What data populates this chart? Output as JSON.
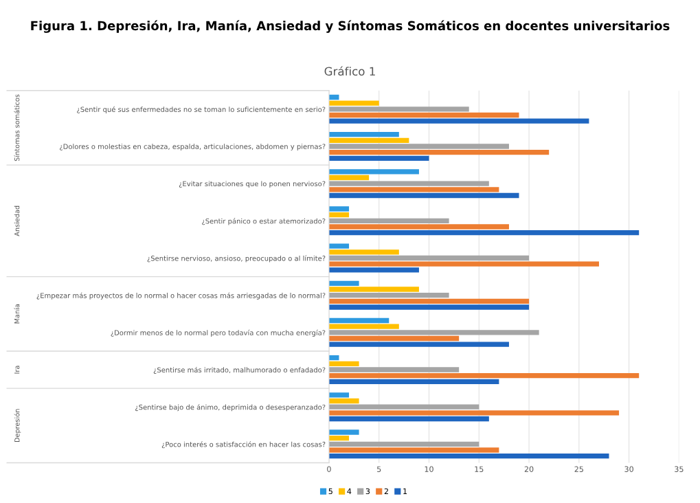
{
  "chart_data": {
    "type": "bar",
    "orientation": "horizontal",
    "title": "Figura 1. Depresión, Ira, Manía, Ansiedad y Síntomas Somáticos en docentes universitarios",
    "subtitle": "Gráfico 1",
    "categories": [
      "¿Sentir qué sus enfermedades no se toman lo suficientemente en serio?",
      "¿Dolores o molestias en cabeza, espalda, articulaciones, abdomen y piernas?",
      "¿Evitar situaciones que lo ponen nervioso?",
      "¿Sentir pánico o estar atemorizado?",
      "¿Sentirse nervioso, ansioso, preocupado o al límite?",
      "¿Empezar más proyectos de lo normal o hacer cosas más arriesgadas de lo normal?",
      "¿Dormir menos de lo normal pero todavía con mucha energía?",
      "¿Sentirse más irritado, malhumorado o enfadado?",
      "¿Sentirse bajo de ánimo, deprimida o desesperanzado?",
      "¿Poco interés o satisfacción en hacer las cosas?"
    ],
    "series": [
      {
        "name": "5",
        "color": "#2e9ae0",
        "values": [
          1,
          7,
          9,
          2,
          2,
          3,
          6,
          1,
          2,
          3
        ]
      },
      {
        "name": "4",
        "color": "#ffc000",
        "values": [
          5,
          8,
          4,
          2,
          7,
          9,
          7,
          3,
          3,
          2
        ]
      },
      {
        "name": "3",
        "color": "#a5a5a5",
        "values": [
          14,
          18,
          16,
          12,
          20,
          12,
          21,
          13,
          15,
          15
        ]
      },
      {
        "name": "2",
        "color": "#ed7d31",
        "values": [
          19,
          22,
          17,
          18,
          27,
          20,
          13,
          31,
          29,
          17
        ]
      },
      {
        "name": "1",
        "color": "#1f66c0",
        "values": [
          26,
          10,
          19,
          31,
          9,
          20,
          18,
          17,
          16,
          28
        ]
      }
    ],
    "annotations": [
      "Síntomas somáticos",
      "Ansiedad",
      "Manía",
      "Ira",
      "Depresión"
    ],
    "xlim": [
      0,
      35
    ],
    "xticks": [
      0,
      5,
      10,
      15,
      20,
      25,
      30,
      35
    ],
    "grid": "x",
    "legend": "bottom"
  }
}
